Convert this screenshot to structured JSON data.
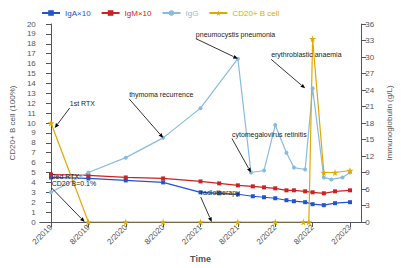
{
  "chart_data": {
    "type": "line",
    "xlabel": "Time",
    "ylabel": "CD20+ B cell (100%)",
    "y2label": "Immunoglobulin (g/L)",
    "xlim": [
      -0.3,
      8.3
    ],
    "xticks": [
      {
        "value": 0,
        "label": "2/2019"
      },
      {
        "value": 1,
        "label": "8/2019"
      },
      {
        "value": 2,
        "label": "2/2020"
      },
      {
        "value": 3,
        "label": "8/2020"
      },
      {
        "value": 4,
        "label": "2/2021"
      },
      {
        "value": 5,
        "label": "8/2021"
      },
      {
        "value": 6,
        "label": "2/2022"
      },
      {
        "value": 7,
        "label": "8/2022"
      },
      {
        "value": 8,
        "label": "2/2023"
      }
    ],
    "ylim": [
      0,
      20
    ],
    "yticks": [
      0,
      1,
      2,
      3,
      4,
      5,
      6,
      7,
      8,
      9,
      10,
      11,
      12,
      13,
      14,
      15,
      16,
      17,
      18,
      19,
      20
    ],
    "y2lim": [
      0,
      36
    ],
    "y2ticks": [
      0,
      3,
      6,
      9,
      12,
      15,
      18,
      21,
      24,
      27,
      30,
      33,
      36
    ],
    "grid": false,
    "legend": "upper left",
    "series": [
      {
        "name": "IgA×10",
        "color": "#2255CC",
        "marker": "square",
        "x": [
          0,
          1,
          2,
          3,
          4,
          4.5,
          5,
          5.4,
          5.7,
          6,
          6.3,
          6.5,
          6.8,
          7,
          7.3,
          7.6,
          8
        ],
        "values": [
          4.5,
          4.4,
          4.2,
          4.0,
          3.0,
          2.9,
          2.8,
          2.6,
          2.5,
          2.4,
          2.2,
          2.1,
          2.0,
          1.8,
          1.7,
          1.9,
          2.0
        ]
      },
      {
        "name": "IgM×10",
        "color": "#CC2222",
        "marker": "square",
        "x": [
          0,
          1,
          2,
          3,
          4,
          4.5,
          5,
          5.4,
          5.7,
          6,
          6.3,
          6.5,
          6.8,
          7,
          7.3,
          7.6,
          8
        ],
        "values": [
          4.8,
          4.7,
          4.5,
          4.4,
          4.1,
          3.9,
          3.7,
          3.6,
          3.5,
          3.4,
          3.2,
          3.2,
          3.1,
          3.0,
          2.9,
          3.1,
          3.2
        ]
      },
      {
        "name": "IgG",
        "color": "#88BBDD",
        "marker": "circle",
        "x": [
          0,
          1,
          2,
          3,
          4,
          5,
          5.35,
          5.7,
          6,
          6.3,
          6.5,
          6.8,
          7,
          7.3,
          7.5,
          7.8,
          8
        ],
        "values": [
          3.0,
          5.0,
          6.5,
          8.5,
          11.5,
          16.5,
          5.0,
          5.2,
          9.8,
          7.0,
          5.5,
          5.3,
          13.5,
          4.5,
          4.3,
          4.5,
          5.0
        ]
      },
      {
        "name": "CD20+ B cell",
        "color": "#DDAA00",
        "marker": "star",
        "x": [
          0,
          1,
          2,
          3,
          4,
          5,
          6,
          6.75,
          6.9,
          7.0,
          7.3,
          7.6,
          8
        ],
        "values": [
          10.0,
          0.0,
          0.0,
          0.0,
          0.0,
          0.0,
          0.0,
          0.0,
          0.0,
          18.5,
          5.0,
          5.0,
          5.2
        ]
      }
    ],
    "annotations": [
      {
        "text": "pneumocystis pneumonia",
        "x": 5.0,
        "y": 16.5
      },
      {
        "text": "thymoma recurrence",
        "x": 3.0,
        "y": 8.5
      },
      {
        "text": "cytomegalovirus retinitis",
        "x": 5.35,
        "y": 5.0
      },
      {
        "text": "erythroblastic anaemia",
        "x": 6.8,
        "y": 13.5
      },
      {
        "text": "1st RTX",
        "x": 0.1,
        "y": 9.5
      },
      {
        "text": "2ed RTX\nCD20 B=0.1%",
        "x": 0.9,
        "y": 0.0
      },
      {
        "text": "radiotherapy",
        "x": 4.3,
        "y": 0.0
      }
    ]
  }
}
